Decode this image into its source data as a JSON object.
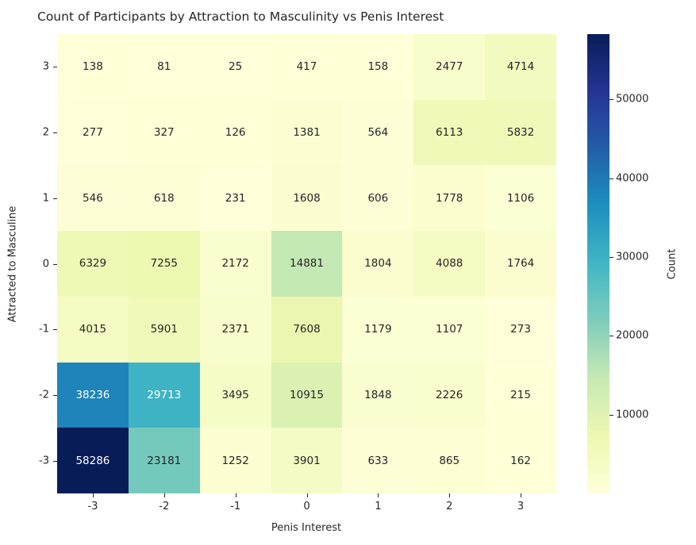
{
  "title": "Count of Participants by Attraction to Masculinity vs Penis Interest",
  "chart_data": {
    "type": "heatmap",
    "title": "Count of Participants by Attraction to Masculinity vs Penis Interest",
    "xlabel": "Penis Interest",
    "ylabel": "Attracted to Masculine",
    "x_categories": [
      "-3",
      "-2",
      "-1",
      "0",
      "1",
      "2",
      "3"
    ],
    "y_categories": [
      "3",
      "2",
      "1",
      "0",
      "-1",
      "-2",
      "-3"
    ],
    "values": [
      [
        138,
        81,
        25,
        417,
        158,
        2477,
        4714
      ],
      [
        277,
        327,
        126,
        1381,
        564,
        6113,
        5832
      ],
      [
        546,
        618,
        231,
        1608,
        606,
        1778,
        1106
      ],
      [
        6329,
        7255,
        2172,
        14881,
        1804,
        4088,
        1764
      ],
      [
        4015,
        5901,
        2371,
        7608,
        1179,
        1107,
        273
      ],
      [
        38236,
        29713,
        3495,
        10915,
        1848,
        2226,
        215
      ],
      [
        58286,
        23181,
        1252,
        3901,
        633,
        865,
        162
      ]
    ],
    "vmin": 25,
    "vmax": 58286,
    "colormap": "YlGnBu",
    "colorbar_label": "Count",
    "colorbar_ticks": [
      "10000",
      "20000",
      "30000",
      "40000",
      "50000"
    ],
    "colorbar_tick_values": [
      10000,
      20000,
      30000,
      40000,
      50000
    ],
    "annotations_shown": true,
    "grid": false
  },
  "colors": {
    "cmap_stops": [
      "#ffffd9",
      "#edf8b1",
      "#c7e9b4",
      "#7fcdbb",
      "#41b6c4",
      "#1d91c0",
      "#225ea8",
      "#253494",
      "#081d58"
    ],
    "dark_text": "#262626",
    "light_text": "#ffffff",
    "background": "#ffffff"
  }
}
